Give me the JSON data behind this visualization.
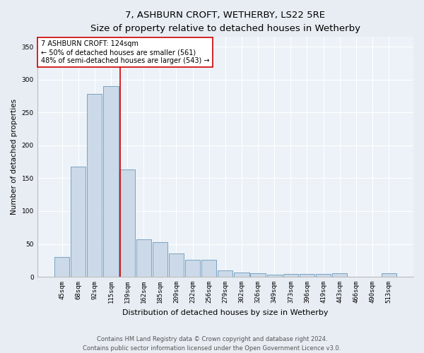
{
  "title": "7, ASHBURN CROFT, WETHERBY, LS22 5RE",
  "subtitle": "Size of property relative to detached houses in Wetherby",
  "xlabel": "Distribution of detached houses by size in Wetherby",
  "ylabel": "Number of detached properties",
  "bar_labels": [
    "45sqm",
    "68sqm",
    "92sqm",
    "115sqm",
    "139sqm",
    "162sqm",
    "185sqm",
    "209sqm",
    "232sqm",
    "256sqm",
    "279sqm",
    "302sqm",
    "326sqm",
    "349sqm",
    "373sqm",
    "396sqm",
    "419sqm",
    "443sqm",
    "466sqm",
    "490sqm",
    "513sqm"
  ],
  "bar_values": [
    30,
    168,
    278,
    290,
    163,
    57,
    53,
    35,
    26,
    26,
    10,
    6,
    5,
    3,
    4,
    4,
    4,
    5,
    0,
    0,
    5
  ],
  "bar_color": "#ccd9e8",
  "bar_edge_color": "#6699bb",
  "vline_x": 3.55,
  "vline_color": "#cc0000",
  "annotation_text": "7 ASHBURN CROFT: 124sqm\n← 50% of detached houses are smaller (561)\n48% of semi-detached houses are larger (543) →",
  "annotation_box_color": "#ffffff",
  "annotation_box_edge": "#cc0000",
  "ylim": [
    0,
    365
  ],
  "yticks": [
    0,
    50,
    100,
    150,
    200,
    250,
    300,
    350
  ],
  "bg_color": "#e8edf3",
  "plot_bg_color": "#edf2f8",
  "grid_color": "#ffffff",
  "footer": "Contains HM Land Registry data © Crown copyright and database right 2024.\nContains public sector information licensed under the Open Government Licence v3.0.",
  "title_fontsize": 9.5,
  "xlabel_fontsize": 8,
  "ylabel_fontsize": 7.5,
  "tick_fontsize": 6.5,
  "annot_fontsize": 7,
  "footer_fontsize": 6
}
